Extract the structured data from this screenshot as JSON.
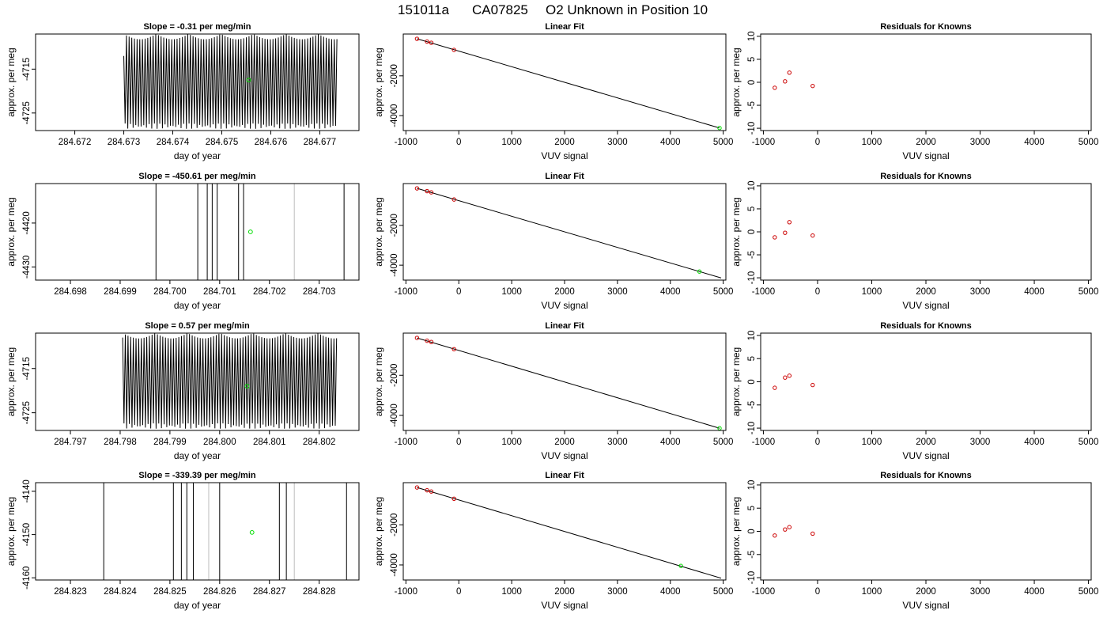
{
  "figure": {
    "title_id": "151011a",
    "title_cylinder": "CA07825",
    "title_desc": "O2 Unknown in Position  10"
  },
  "colors": {
    "trace": "#000000",
    "trace_faint": "#bdbdbd",
    "known_point": "#cc0000",
    "unknown_point": "#00dd00",
    "fit_line": "#000000"
  },
  "chart_data": [
    {
      "type": "line",
      "panel": "trace-1",
      "title": "Slope =  -0.31  per meg/min",
      "xlabel": "day of year",
      "ylabel": "approx. per meg",
      "xlim": [
        284.6712,
        284.6778
      ],
      "ylim": [
        -4729,
        -4707
      ],
      "xticks": [
        "284.672",
        "284.673",
        "284.674",
        "284.675",
        "284.676",
        "284.677"
      ],
      "yticks": [
        {
          "v": -4715,
          "label": "-4715"
        },
        {
          "v": -4725,
          "label": "-4725"
        }
      ],
      "trace": {
        "style": "oscillation",
        "x_start": 284.673,
        "x_end": 284.67735,
        "cycles": 80,
        "y_high": -4707,
        "y_low": -4728,
        "y_first": -4712
      },
      "unknown_marker": {
        "x": 284.67555,
        "y": -4717.5
      }
    },
    {
      "type": "scatter",
      "panel": "fit-1",
      "title": "Linear Fit",
      "xlabel": "VUV signal",
      "ylabel": "approx. per meg",
      "xlim": [
        -1050,
        5050
      ],
      "ylim": [
        -4750,
        100
      ],
      "xticks": [
        {
          "v": -1000,
          "label": "-1000"
        },
        {
          "v": 0,
          "label": "0"
        },
        {
          "v": 1000,
          "label": "1000"
        },
        {
          "v": 2000,
          "label": "2000"
        },
        {
          "v": 3000,
          "label": "3000"
        },
        {
          "v": 4000,
          "label": "4000"
        },
        {
          "v": 5000,
          "label": "5000"
        }
      ],
      "yticks": [
        {
          "v": -2000,
          "label": "-2000"
        },
        {
          "v": -4000,
          "label": "-4000"
        }
      ],
      "knowns": [
        {
          "x": -790,
          "y": -140
        },
        {
          "x": -600,
          "y": -280
        },
        {
          "x": -520,
          "y": -340
        },
        {
          "x": -90,
          "y": -700
        }
      ],
      "unknown": {
        "x": 4930,
        "y": -4620
      },
      "fit_line": {
        "x0": -790,
        "y0": -140,
        "x1": 4930,
        "y1": -4620
      }
    },
    {
      "type": "scatter",
      "panel": "resid-1",
      "title": "Residuals for Knowns",
      "xlabel": "VUV signal",
      "ylabel": "approx. per meg",
      "xlim": [
        -1050,
        5050
      ],
      "ylim": [
        -10.5,
        10.5
      ],
      "xticks": [
        {
          "v": -1000,
          "label": "-1000"
        },
        {
          "v": 0,
          "label": "0"
        },
        {
          "v": 1000,
          "label": "1000"
        },
        {
          "v": 2000,
          "label": "2000"
        },
        {
          "v": 3000,
          "label": "3000"
        },
        {
          "v": 4000,
          "label": "4000"
        },
        {
          "v": 5000,
          "label": "5000"
        }
      ],
      "yticks": [
        {
          "v": 10,
          "label": "10"
        },
        {
          "v": 5,
          "label": "5"
        },
        {
          "v": 0,
          "label": "0"
        },
        {
          "v": -5,
          "label": "-5"
        },
        {
          "v": -10,
          "label": "-10"
        }
      ],
      "points": [
        {
          "x": -790,
          "y": -1.2
        },
        {
          "x": -600,
          "y": 0.2
        },
        {
          "x": -520,
          "y": 2.1
        },
        {
          "x": -90,
          "y": -0.8
        }
      ]
    },
    {
      "type": "line",
      "panel": "trace-2",
      "title": "Slope =  -450.61  per meg/min",
      "xlabel": "day of year",
      "ylabel": "approx. per meg",
      "xlim": [
        284.6973,
        284.7038
      ],
      "ylim": [
        -4433,
        -4411
      ],
      "xticks": [
        "284.698",
        "284.699",
        "284.700",
        "284.701",
        "284.702",
        "284.703"
      ],
      "yticks": [
        {
          "v": -4420,
          "label": "-4420"
        },
        {
          "v": -4430,
          "label": "-4430"
        }
      ],
      "trace": {
        "style": "spikes",
        "lines": [
          {
            "x": 284.69972,
            "faint": false
          },
          {
            "x": 284.70056,
            "faint": false
          },
          {
            "x": 284.70075,
            "faint": false
          },
          {
            "x": 284.70085,
            "faint": false
          },
          {
            "x": 284.70095,
            "faint": false
          },
          {
            "x": 284.70138,
            "faint": false
          },
          {
            "x": 284.70148,
            "faint": false
          },
          {
            "x": 284.7025,
            "faint": true
          },
          {
            "x": 284.7035,
            "faint": false
          }
        ]
      },
      "unknown_marker": {
        "x": 284.70162,
        "y": -4422
      }
    },
    {
      "type": "scatter",
      "panel": "fit-2",
      "title": "Linear Fit",
      "xlabel": "VUV signal",
      "ylabel": "approx. per meg",
      "xlim": [
        -1050,
        5050
      ],
      "ylim": [
        -4750,
        100
      ],
      "xticks": [
        {
          "v": -1000,
          "label": "-1000"
        },
        {
          "v": 0,
          "label": "0"
        },
        {
          "v": 1000,
          "label": "1000"
        },
        {
          "v": 2000,
          "label": "2000"
        },
        {
          "v": 3000,
          "label": "3000"
        },
        {
          "v": 4000,
          "label": "4000"
        },
        {
          "v": 5000,
          "label": "5000"
        }
      ],
      "yticks": [
        {
          "v": -2000,
          "label": "-2000"
        },
        {
          "v": -4000,
          "label": "-4000"
        }
      ],
      "knowns": [
        {
          "x": -790,
          "y": -140
        },
        {
          "x": -600,
          "y": -280
        },
        {
          "x": -520,
          "y": -340
        },
        {
          "x": -90,
          "y": -700
        }
      ],
      "unknown": {
        "x": 4550,
        "y": -4320
      },
      "fit_line": {
        "x0": -790,
        "y0": -140,
        "x1": 4960,
        "y1": -4640
      }
    },
    {
      "type": "scatter",
      "panel": "resid-2",
      "title": "Residuals for Knowns",
      "xlabel": "VUV signal",
      "ylabel": "approx. per meg",
      "xlim": [
        -1050,
        5050
      ],
      "ylim": [
        -10.5,
        10.5
      ],
      "xticks": [
        {
          "v": -1000,
          "label": "-1000"
        },
        {
          "v": 0,
          "label": "0"
        },
        {
          "v": 1000,
          "label": "1000"
        },
        {
          "v": 2000,
          "label": "2000"
        },
        {
          "v": 3000,
          "label": "3000"
        },
        {
          "v": 4000,
          "label": "4000"
        },
        {
          "v": 5000,
          "label": "5000"
        }
      ],
      "yticks": [
        {
          "v": 10,
          "label": "10"
        },
        {
          "v": 5,
          "label": "5"
        },
        {
          "v": 0,
          "label": "0"
        },
        {
          "v": -5,
          "label": "-5"
        },
        {
          "v": -10,
          "label": "-10"
        }
      ],
      "points": [
        {
          "x": -790,
          "y": -1.2
        },
        {
          "x": -600,
          "y": -0.2
        },
        {
          "x": -520,
          "y": 2.1
        },
        {
          "x": -90,
          "y": -0.8
        }
      ]
    },
    {
      "type": "line",
      "panel": "trace-3",
      "title": "Slope =  0.57  per meg/min",
      "xlabel": "day of year",
      "ylabel": "approx. per meg",
      "xlim": [
        284.7963,
        284.8028
      ],
      "ylim": [
        -4729,
        -4707
      ],
      "xticks": [
        "284.797",
        "284.798",
        "284.799",
        "284.800",
        "284.801",
        "284.802"
      ],
      "yticks": [
        {
          "v": -4715,
          "label": "-4715"
        },
        {
          "v": -4725,
          "label": "-4725"
        }
      ],
      "trace": {
        "style": "oscillation",
        "x_start": 284.79805,
        "x_end": 284.80235,
        "cycles": 80,
        "y_high": -4707,
        "y_low": -4728,
        "y_first": -4708
      },
      "unknown_marker": {
        "x": 284.80055,
        "y": -4719
      }
    },
    {
      "type": "scatter",
      "panel": "fit-3",
      "title": "Linear Fit",
      "xlabel": "VUV signal",
      "ylabel": "approx. per meg",
      "xlim": [
        -1050,
        5050
      ],
      "ylim": [
        -4750,
        100
      ],
      "xticks": [
        {
          "v": -1000,
          "label": "-1000"
        },
        {
          "v": 0,
          "label": "0"
        },
        {
          "v": 1000,
          "label": "1000"
        },
        {
          "v": 2000,
          "label": "2000"
        },
        {
          "v": 3000,
          "label": "3000"
        },
        {
          "v": 4000,
          "label": "4000"
        },
        {
          "v": 5000,
          "label": "5000"
        }
      ],
      "yticks": [
        {
          "v": -2000,
          "label": "-2000"
        },
        {
          "v": -4000,
          "label": "-4000"
        }
      ],
      "knowns": [
        {
          "x": -790,
          "y": -140
        },
        {
          "x": -600,
          "y": -280
        },
        {
          "x": -520,
          "y": -340
        },
        {
          "x": -90,
          "y": -700
        }
      ],
      "unknown": {
        "x": 4930,
        "y": -4640
      },
      "fit_line": {
        "x0": -790,
        "y0": -140,
        "x1": 4930,
        "y1": -4640
      }
    },
    {
      "type": "scatter",
      "panel": "resid-3",
      "title": "Residuals for Knowns",
      "xlabel": "VUV signal",
      "ylabel": "approx. per meg",
      "xlim": [
        -1050,
        5050
      ],
      "ylim": [
        -10.5,
        10.5
      ],
      "xticks": [
        {
          "v": -1000,
          "label": "-1000"
        },
        {
          "v": 0,
          "label": "0"
        },
        {
          "v": 1000,
          "label": "1000"
        },
        {
          "v": 2000,
          "label": "2000"
        },
        {
          "v": 3000,
          "label": "3000"
        },
        {
          "v": 4000,
          "label": "4000"
        },
        {
          "v": 5000,
          "label": "5000"
        }
      ],
      "yticks": [
        {
          "v": 10,
          "label": "10"
        },
        {
          "v": 5,
          "label": "5"
        },
        {
          "v": 0,
          "label": "0"
        },
        {
          "v": -5,
          "label": "-5"
        },
        {
          "v": -10,
          "label": "-10"
        }
      ],
      "points": [
        {
          "x": -790,
          "y": -1.3
        },
        {
          "x": -600,
          "y": 0.9
        },
        {
          "x": -520,
          "y": 1.3
        },
        {
          "x": -90,
          "y": -0.7
        }
      ]
    },
    {
      "type": "line",
      "panel": "trace-4",
      "title": "Slope =  -339.39  per meg/min",
      "xlabel": "day of year",
      "ylabel": "approx. per meg",
      "xlim": [
        284.8223,
        284.8288
      ],
      "ylim": [
        -4160.5,
        -4138
      ],
      "xticks": [
        "284.823",
        "284.824",
        "284.825",
        "284.826",
        "284.827",
        "284.828"
      ],
      "yticks": [
        {
          "v": -4140,
          "label": "-4140"
        },
        {
          "v": -4150,
          "label": "-4150"
        },
        {
          "v": -4160,
          "label": "-4160"
        }
      ],
      "trace": {
        "style": "spikes",
        "lines": [
          {
            "x": 284.82367,
            "faint": false
          },
          {
            "x": 284.82507,
            "faint": false
          },
          {
            "x": 284.82523,
            "faint": false
          },
          {
            "x": 284.82534,
            "faint": false
          },
          {
            "x": 284.82547,
            "faint": false
          },
          {
            "x": 284.82578,
            "faint": true
          },
          {
            "x": 284.826,
            "faint": false
          },
          {
            "x": 284.8272,
            "faint": false
          },
          {
            "x": 284.82734,
            "faint": false
          },
          {
            "x": 284.8275,
            "faint": true
          },
          {
            "x": 284.82855,
            "faint": false
          }
        ]
      },
      "unknown_marker": {
        "x": 284.82665,
        "y": -4149.5
      }
    },
    {
      "type": "scatter",
      "panel": "fit-4",
      "title": "Linear Fit",
      "xlabel": "VUV signal",
      "ylabel": "approx. per meg",
      "xlim": [
        -1050,
        5050
      ],
      "ylim": [
        -4750,
        100
      ],
      "xticks": [
        {
          "v": -1000,
          "label": "-1000"
        },
        {
          "v": 0,
          "label": "0"
        },
        {
          "v": 1000,
          "label": "1000"
        },
        {
          "v": 2000,
          "label": "2000"
        },
        {
          "v": 3000,
          "label": "3000"
        },
        {
          "v": 4000,
          "label": "4000"
        },
        {
          "v": 5000,
          "label": "5000"
        }
      ],
      "yticks": [
        {
          "v": -2000,
          "label": "-2000"
        },
        {
          "v": -4000,
          "label": "-4000"
        }
      ],
      "knowns": [
        {
          "x": -790,
          "y": -140
        },
        {
          "x": -600,
          "y": -280
        },
        {
          "x": -520,
          "y": -340
        },
        {
          "x": -90,
          "y": -700
        }
      ],
      "unknown": {
        "x": 4200,
        "y": -4050
      },
      "fit_line": {
        "x0": -790,
        "y0": -140,
        "x1": 4960,
        "y1": -4660
      }
    },
    {
      "type": "scatter",
      "panel": "resid-4",
      "title": "Residuals for Knowns",
      "xlabel": "VUV signal",
      "ylabel": "approx. per meg",
      "xlim": [
        -1050,
        5050
      ],
      "ylim": [
        -10.5,
        10.5
      ],
      "xticks": [
        {
          "v": -1000,
          "label": "-1000"
        },
        {
          "v": 0,
          "label": "0"
        },
        {
          "v": 1000,
          "label": "1000"
        },
        {
          "v": 2000,
          "label": "2000"
        },
        {
          "v": 3000,
          "label": "3000"
        },
        {
          "v": 4000,
          "label": "4000"
        },
        {
          "v": 5000,
          "label": "5000"
        }
      ],
      "yticks": [
        {
          "v": 10,
          "label": "10"
        },
        {
          "v": 5,
          "label": "5"
        },
        {
          "v": 0,
          "label": "0"
        },
        {
          "v": -5,
          "label": "-5"
        },
        {
          "v": -10,
          "label": "-10"
        }
      ],
      "points": [
        {
          "x": -790,
          "y": -0.9
        },
        {
          "x": -600,
          "y": 0.4
        },
        {
          "x": -520,
          "y": 0.9
        },
        {
          "x": -90,
          "y": -0.5
        }
      ]
    }
  ]
}
